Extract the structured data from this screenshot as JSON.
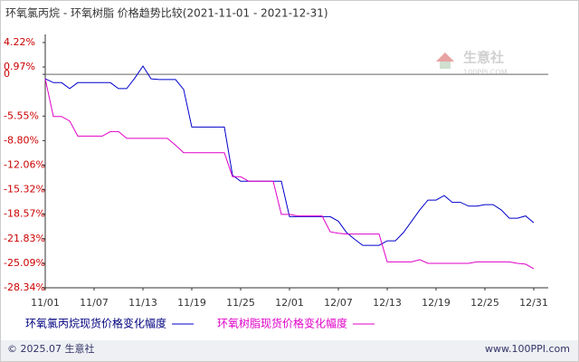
{
  "chart_data": {
    "type": "line",
    "title": "环氧氯丙烷 - 环氧树脂 价格趋势比较(2021-11-01 - 2021-12-31)",
    "watermark": {
      "name": "生意社",
      "site": "100PPI.COM"
    },
    "footer": {
      "left": "© 2025.07 生意社",
      "right": "www.100PPI.com"
    },
    "x": [
      "2021-11-01",
      "2021-11-02",
      "2021-11-03",
      "2021-11-04",
      "2021-11-05",
      "2021-11-06",
      "2021-11-07",
      "2021-11-08",
      "2021-11-09",
      "2021-11-10",
      "2021-11-11",
      "2021-11-12",
      "2021-11-13",
      "2021-11-14",
      "2021-11-15",
      "2021-11-16",
      "2021-11-17",
      "2021-11-18",
      "2021-11-19",
      "2021-11-20",
      "2021-11-21",
      "2021-11-22",
      "2021-11-23",
      "2021-11-24",
      "2021-11-25",
      "2021-11-26",
      "2021-11-27",
      "2021-11-28",
      "2021-11-29",
      "2021-11-30",
      "2021-12-01",
      "2021-12-02",
      "2021-12-03",
      "2021-12-04",
      "2021-12-05",
      "2021-12-06",
      "2021-12-07",
      "2021-12-08",
      "2021-12-09",
      "2021-12-10",
      "2021-12-11",
      "2021-12-12",
      "2021-12-13",
      "2021-12-14",
      "2021-12-15",
      "2021-12-16",
      "2021-12-17",
      "2021-12-18",
      "2021-12-19",
      "2021-12-20",
      "2021-12-21",
      "2021-12-22",
      "2021-12-23",
      "2021-12-24",
      "2021-12-25",
      "2021-12-26",
      "2021-12-27",
      "2021-12-28",
      "2021-12-29",
      "2021-12-30",
      "2021-12-31"
    ],
    "series": [
      {
        "name": "环氧氯丙烷现货价格变化幅度",
        "color": "#0000cc",
        "values": [
          -0.6,
          -1.1,
          -1.1,
          -1.9,
          -1.1,
          -1.1,
          -1.1,
          -1.1,
          -1.1,
          -1.9,
          -1.9,
          -0.5,
          1.1,
          -0.6,
          -0.7,
          -0.7,
          -0.7,
          -2.0,
          -7.0,
          -7.0,
          -7.0,
          -7.0,
          -7.0,
          -13.4,
          -14.2,
          -14.2,
          -14.2,
          -14.2,
          -14.2,
          -14.2,
          -18.9,
          -18.9,
          -18.9,
          -18.9,
          -18.9,
          -18.9,
          -19.5,
          -21.0,
          -21.9,
          -22.7,
          -22.7,
          -22.7,
          -22.1,
          -22.1,
          -21.0,
          -19.5,
          -18.0,
          -16.7,
          -16.7,
          -16.1,
          -17.0,
          -17.0,
          -17.5,
          -17.5,
          -17.3,
          -17.3,
          -18.0,
          -19.1,
          -19.1,
          -18.8,
          -19.7
        ]
      },
      {
        "name": "环氧树脂现货价格变化幅度",
        "color": "#e000c8",
        "values": [
          -0.6,
          -5.6,
          -5.6,
          -6.2,
          -8.2,
          -8.2,
          -8.2,
          -8.2,
          -7.6,
          -7.6,
          -8.5,
          -8.5,
          -8.5,
          -8.5,
          -8.5,
          -8.5,
          -9.4,
          -10.4,
          -10.4,
          -10.4,
          -10.4,
          -10.4,
          -10.4,
          -13.6,
          -13.6,
          -14.2,
          -14.2,
          -14.2,
          -14.2,
          -18.6,
          -18.6,
          -18.8,
          -18.8,
          -18.8,
          -18.8,
          -20.9,
          -21.1,
          -21.2,
          -21.2,
          -21.2,
          -21.2,
          -21.2,
          -24.9,
          -24.9,
          -24.9,
          -24.9,
          -24.6,
          -25.1,
          -25.1,
          -25.1,
          -25.1,
          -25.1,
          -25.1,
          -24.9,
          -24.9,
          -24.9,
          -24.9,
          -24.9,
          -25.1,
          -25.2,
          -25.8
        ]
      }
    ],
    "xlim": [
      "2021-11-01",
      "2021-12-31"
    ],
    "xticks": [
      {
        "value": "2021-11-01",
        "label": "11/01"
      },
      {
        "value": "2021-11-07",
        "label": "11/07"
      },
      {
        "value": "2021-11-13",
        "label": "11/13"
      },
      {
        "value": "2021-11-19",
        "label": "11/19"
      },
      {
        "value": "2021-11-25",
        "label": "11/25"
      },
      {
        "value": "2021-12-01",
        "label": "12/01"
      },
      {
        "value": "2021-12-07",
        "label": "12/07"
      },
      {
        "value": "2021-12-13",
        "label": "12/13"
      },
      {
        "value": "2021-12-19",
        "label": "12/19"
      },
      {
        "value": "2021-12-25",
        "label": "12/25"
      },
      {
        "value": "2021-12-31",
        "label": "12/31"
      }
    ],
    "ylim": [
      -28.34,
      5.3
    ],
    "yticks": [
      {
        "value": 4.22,
        "label": "4.22%"
      },
      {
        "value": 0.97,
        "label": "0.97%"
      },
      0,
      {
        "value": -5.55,
        "label": "-5.55%"
      },
      {
        "value": -8.8,
        "label": "-8.80%"
      },
      {
        "value": -12.06,
        "label": "-12.06%"
      },
      {
        "value": -15.32,
        "label": "-15.32%"
      },
      {
        "value": -18.57,
        "label": "-18.57%"
      },
      {
        "value": -21.83,
        "label": "-21.83%"
      },
      {
        "value": -25.09,
        "label": "-25.09%"
      },
      {
        "value": -28.34,
        "label": "-28.34%"
      }
    ],
    "zero_line": true
  }
}
